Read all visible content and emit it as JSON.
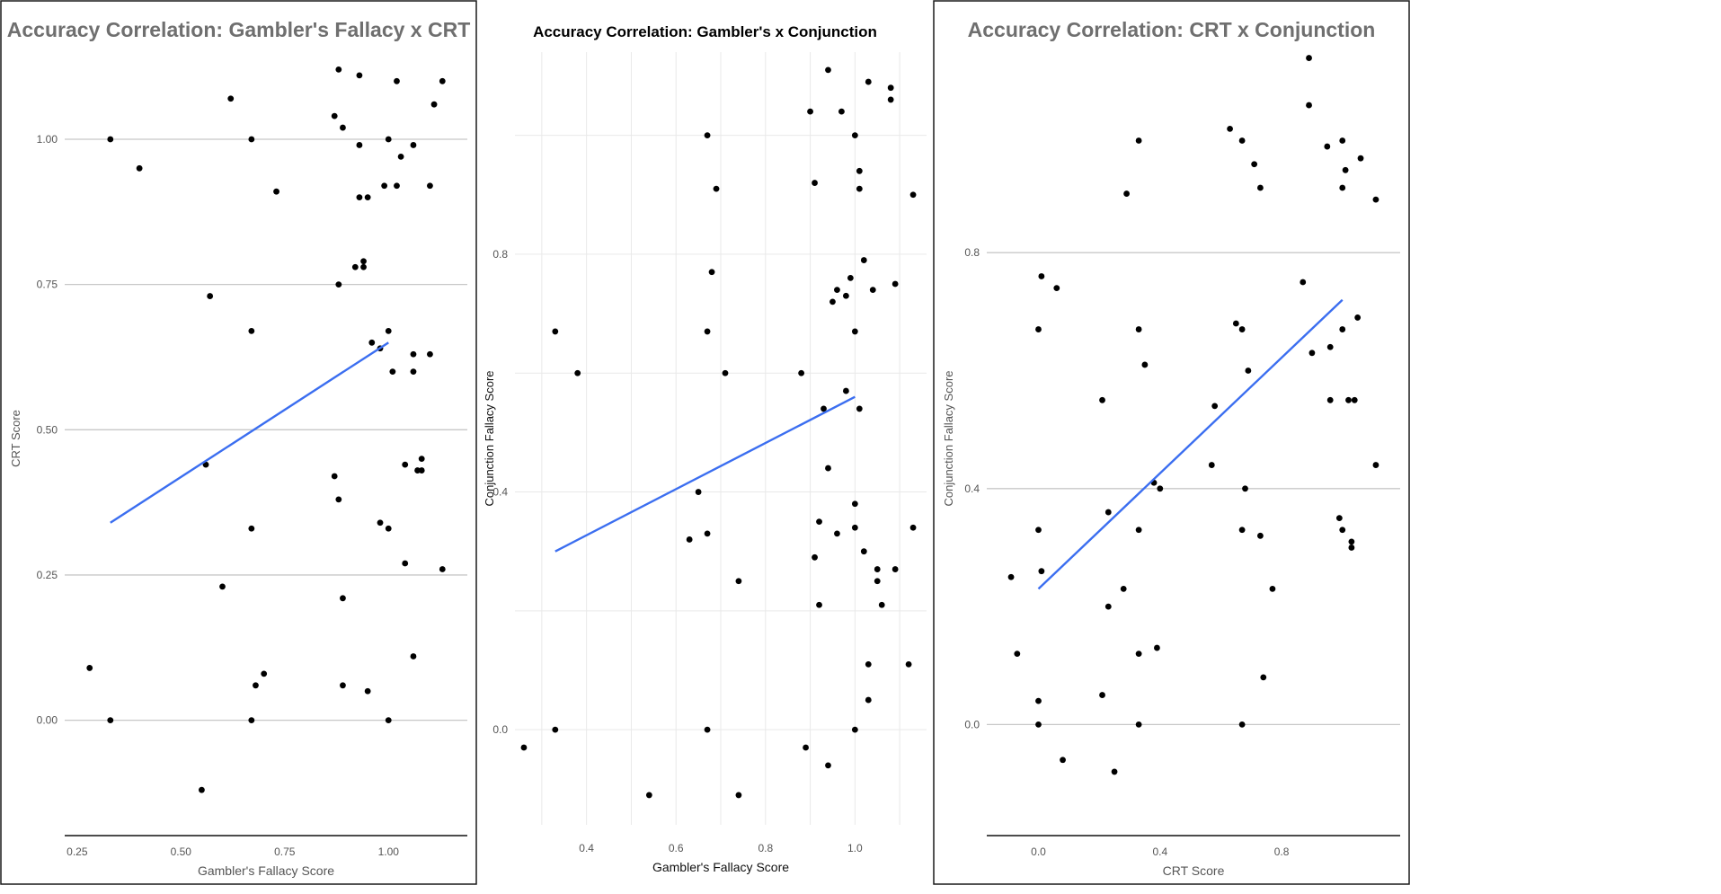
{
  "colors": {
    "fit_line": "#3b6ef0",
    "points": "#000000",
    "title_gray": "#6f6f6f"
  },
  "chart_data": [
    {
      "type": "scatter",
      "title": "Accuracy Correlation: Gambler's Fallacy x CRT",
      "xlabel": "Gambler's Fallacy Score",
      "ylabel": "CRT Score",
      "xlim": [
        0.22,
        1.19
      ],
      "ylim": [
        -0.18,
        1.15
      ],
      "xticks": [
        "0.25",
        "0.50",
        "0.75",
        "1.00"
      ],
      "yticks": [
        "0.00",
        "0.25",
        "0.50",
        "0.75",
        "1.00"
      ],
      "grid": "horizontal-major",
      "points": [
        [
          0.28,
          0.09
        ],
        [
          0.33,
          1.0
        ],
        [
          0.33,
          0.0
        ],
        [
          0.4,
          0.95
        ],
        [
          0.55,
          -0.12
        ],
        [
          0.56,
          0.44
        ],
        [
          0.57,
          0.73
        ],
        [
          0.6,
          0.23
        ],
        [
          0.62,
          1.07
        ],
        [
          0.67,
          1.0
        ],
        [
          0.67,
          0.67
        ],
        [
          0.67,
          0.33
        ],
        [
          0.67,
          0.0
        ],
        [
          0.68,
          0.06
        ],
        [
          0.7,
          0.08
        ],
        [
          0.73,
          0.91
        ],
        [
          0.87,
          1.04
        ],
        [
          0.87,
          0.42
        ],
        [
          0.88,
          1.12
        ],
        [
          0.88,
          0.75
        ],
        [
          0.88,
          0.38
        ],
        [
          0.89,
          1.02
        ],
        [
          0.89,
          0.21
        ],
        [
          0.89,
          0.06
        ],
        [
          0.92,
          0.78
        ],
        [
          0.93,
          0.99
        ],
        [
          0.93,
          1.11
        ],
        [
          0.93,
          0.9
        ],
        [
          0.94,
          0.78
        ],
        [
          0.94,
          0.79
        ],
        [
          0.95,
          0.9
        ],
        [
          0.95,
          0.05
        ],
        [
          0.96,
          0.65
        ],
        [
          0.98,
          0.64
        ],
        [
          0.98,
          0.34
        ],
        [
          0.99,
          0.92
        ],
        [
          1.0,
          1.0
        ],
        [
          1.0,
          0.67
        ],
        [
          1.0,
          0.33
        ],
        [
          1.0,
          0.0
        ],
        [
          1.01,
          0.6
        ],
        [
          1.02,
          1.1
        ],
        [
          1.02,
          0.92
        ],
        [
          1.03,
          0.97
        ],
        [
          1.04,
          0.27
        ],
        [
          1.04,
          0.44
        ],
        [
          1.06,
          0.99
        ],
        [
          1.06,
          0.63
        ],
        [
          1.06,
          0.6
        ],
        [
          1.06,
          0.11
        ],
        [
          1.07,
          0.43
        ],
        [
          1.08,
          0.45
        ],
        [
          1.08,
          0.43
        ],
        [
          1.1,
          0.92
        ],
        [
          1.1,
          0.63
        ],
        [
          1.11,
          1.06
        ],
        [
          1.13,
          1.1
        ],
        [
          1.13,
          0.26
        ]
      ],
      "fit": [
        [
          0.33,
          0.34
        ],
        [
          1.0,
          0.65
        ]
      ]
    },
    {
      "type": "scatter",
      "title": "Accuracy Correlation: Gambler's x Conjunction",
      "xlabel": "Gambler's Fallacy Score",
      "ylabel": "Conjunction Fallacy Score",
      "xlim": [
        0.24,
        1.16
      ],
      "ylim": [
        -0.16,
        1.14
      ],
      "xticks": [
        "0.4",
        "0.6",
        "0.8",
        "1.0"
      ],
      "yticks": [
        "0.0",
        "0.4",
        "0.8"
      ],
      "grid": "full-light",
      "points": [
        [
          0.26,
          -0.03
        ],
        [
          0.33,
          0.67
        ],
        [
          0.33,
          0.0
        ],
        [
          0.38,
          0.6
        ],
        [
          0.54,
          -0.11
        ],
        [
          0.63,
          0.32
        ],
        [
          0.65,
          0.4
        ],
        [
          0.67,
          1.0
        ],
        [
          0.67,
          0.67
        ],
        [
          0.67,
          0.33
        ],
        [
          0.67,
          0.0
        ],
        [
          0.68,
          0.77
        ],
        [
          0.69,
          0.91
        ],
        [
          0.71,
          0.6
        ],
        [
          0.74,
          -0.11
        ],
        [
          0.74,
          0.25
        ],
        [
          0.88,
          0.6
        ],
        [
          0.89,
          -0.03
        ],
        [
          0.9,
          1.04
        ],
        [
          0.91,
          0.29
        ],
        [
          0.91,
          0.92
        ],
        [
          0.92,
          0.35
        ],
        [
          0.92,
          0.21
        ],
        [
          0.93,
          0.54
        ],
        [
          0.94,
          1.11
        ],
        [
          0.94,
          0.44
        ],
        [
          0.94,
          -0.06
        ],
        [
          0.95,
          0.72
        ],
        [
          0.96,
          0.74
        ],
        [
          0.96,
          0.33
        ],
        [
          0.97,
          1.04
        ],
        [
          0.98,
          0.73
        ],
        [
          0.98,
          0.57
        ],
        [
          0.99,
          0.76
        ],
        [
          1.0,
          1.0
        ],
        [
          1.0,
          0.67
        ],
        [
          1.0,
          0.38
        ],
        [
          1.0,
          0.34
        ],
        [
          1.0,
          0.0
        ],
        [
          1.01,
          0.94
        ],
        [
          1.01,
          0.91
        ],
        [
          1.01,
          0.54
        ],
        [
          1.02,
          0.79
        ],
        [
          1.02,
          0.3
        ],
        [
          1.03,
          1.09
        ],
        [
          1.03,
          0.11
        ],
        [
          1.03,
          0.05
        ],
        [
          1.04,
          0.74
        ],
        [
          1.05,
          0.27
        ],
        [
          1.05,
          0.25
        ],
        [
          1.06,
          0.21
        ],
        [
          1.08,
          1.06
        ],
        [
          1.08,
          1.08
        ],
        [
          1.09,
          0.75
        ],
        [
          1.09,
          0.27
        ],
        [
          1.12,
          0.11
        ],
        [
          1.13,
          0.34
        ],
        [
          1.13,
          0.9
        ]
      ],
      "fit": [
        [
          0.33,
          0.3
        ],
        [
          1.0,
          0.56
        ]
      ]
    },
    {
      "type": "scatter",
      "title": "Accuracy Correlation: CRT x Conjunction",
      "xlabel": "CRT Score",
      "ylabel": "Conjunction Fallacy Score",
      "xlim": [
        -0.17,
        1.19
      ],
      "ylim": [
        -0.17,
        1.14
      ],
      "xticks": [
        "0.0",
        "0.4",
        "0.8"
      ],
      "yticks": [
        "0.0",
        "0.4",
        "0.8"
      ],
      "grid": "horizontal-major",
      "points": [
        [
          -0.09,
          0.25
        ],
        [
          -0.07,
          0.12
        ],
        [
          0.0,
          0.67
        ],
        [
          0.0,
          0.33
        ],
        [
          0.0,
          0.04
        ],
        [
          0.0,
          0.0
        ],
        [
          0.01,
          0.26
        ],
        [
          0.01,
          0.76
        ],
        [
          0.06,
          0.74
        ],
        [
          0.08,
          -0.06
        ],
        [
          0.21,
          0.55
        ],
        [
          0.21,
          0.05
        ],
        [
          0.23,
          0.36
        ],
        [
          0.23,
          0.2
        ],
        [
          0.25,
          -0.08
        ],
        [
          0.28,
          0.23
        ],
        [
          0.29,
          0.9
        ],
        [
          0.33,
          0.99
        ],
        [
          0.33,
          0.67
        ],
        [
          0.33,
          0.33
        ],
        [
          0.33,
          0.12
        ],
        [
          0.33,
          0.0
        ],
        [
          0.35,
          0.61
        ],
        [
          0.38,
          0.41
        ],
        [
          0.39,
          0.13
        ],
        [
          0.4,
          0.4
        ],
        [
          0.57,
          0.44
        ],
        [
          0.58,
          0.54
        ],
        [
          0.63,
          1.01
        ],
        [
          0.65,
          0.68
        ],
        [
          0.67,
          0.99
        ],
        [
          0.67,
          0.67
        ],
        [
          0.67,
          0.33
        ],
        [
          0.67,
          0.0
        ],
        [
          0.68,
          0.4
        ],
        [
          0.69,
          0.6
        ],
        [
          0.71,
          0.95
        ],
        [
          0.73,
          0.91
        ],
        [
          0.73,
          0.32
        ],
        [
          0.74,
          0.08
        ],
        [
          0.77,
          0.23
        ],
        [
          0.87,
          0.75
        ],
        [
          0.89,
          1.13
        ],
        [
          0.89,
          1.05
        ],
        [
          0.9,
          0.63
        ],
        [
          0.95,
          0.98
        ],
        [
          0.96,
          0.55
        ],
        [
          0.96,
          0.64
        ],
        [
          0.99,
          0.35
        ],
        [
          1.0,
          0.99
        ],
        [
          1.0,
          0.91
        ],
        [
          1.0,
          0.67
        ],
        [
          1.0,
          0.33
        ],
        [
          1.01,
          0.94
        ],
        [
          1.02,
          0.55
        ],
        [
          1.03,
          0.31
        ],
        [
          1.03,
          0.3
        ],
        [
          1.04,
          0.55
        ],
        [
          1.05,
          0.69
        ],
        [
          1.06,
          0.96
        ],
        [
          1.11,
          0.89
        ],
        [
          1.11,
          0.44
        ]
      ],
      "fit": [
        [
          0.0,
          0.23
        ],
        [
          1.0,
          0.72
        ]
      ]
    }
  ]
}
